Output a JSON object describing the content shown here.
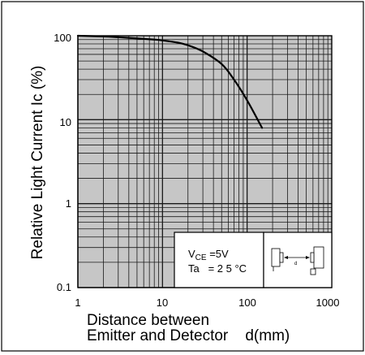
{
  "chart_data": {
    "type": "line",
    "title": "",
    "ylabel": "Relative Light Current  Ic (%)",
    "xlabel_line1": "Distance between",
    "xlabel_line2": "Emitter and Detector    d(mm)",
    "xscale": "log",
    "yscale": "log",
    "xlim": [
      1,
      1000
    ],
    "ylim": [
      0.1,
      100
    ],
    "x_ticks": [
      "1",
      "10",
      "100",
      "1000"
    ],
    "y_ticks": [
      "0.1",
      "1",
      "10",
      "100"
    ],
    "grid": true,
    "series": [
      {
        "x": [
          1,
          2,
          3,
          5,
          8,
          10,
          15,
          20,
          30,
          50,
          70,
          100,
          150
        ],
        "y": [
          100,
          98,
          96,
          93,
          90,
          88,
          83,
          77,
          65,
          46,
          30,
          17,
          8
        ]
      }
    ],
    "conditions": {
      "line1_main": "V",
      "line1_sub": "CE",
      "line1_rest": " =5V",
      "line2": "Ta   = 2 5 °C"
    },
    "diagram_label": "d"
  },
  "colors": {
    "plot_background": "#c6c6c6",
    "grid": "#1a1a1a",
    "curve": "#000000"
  }
}
